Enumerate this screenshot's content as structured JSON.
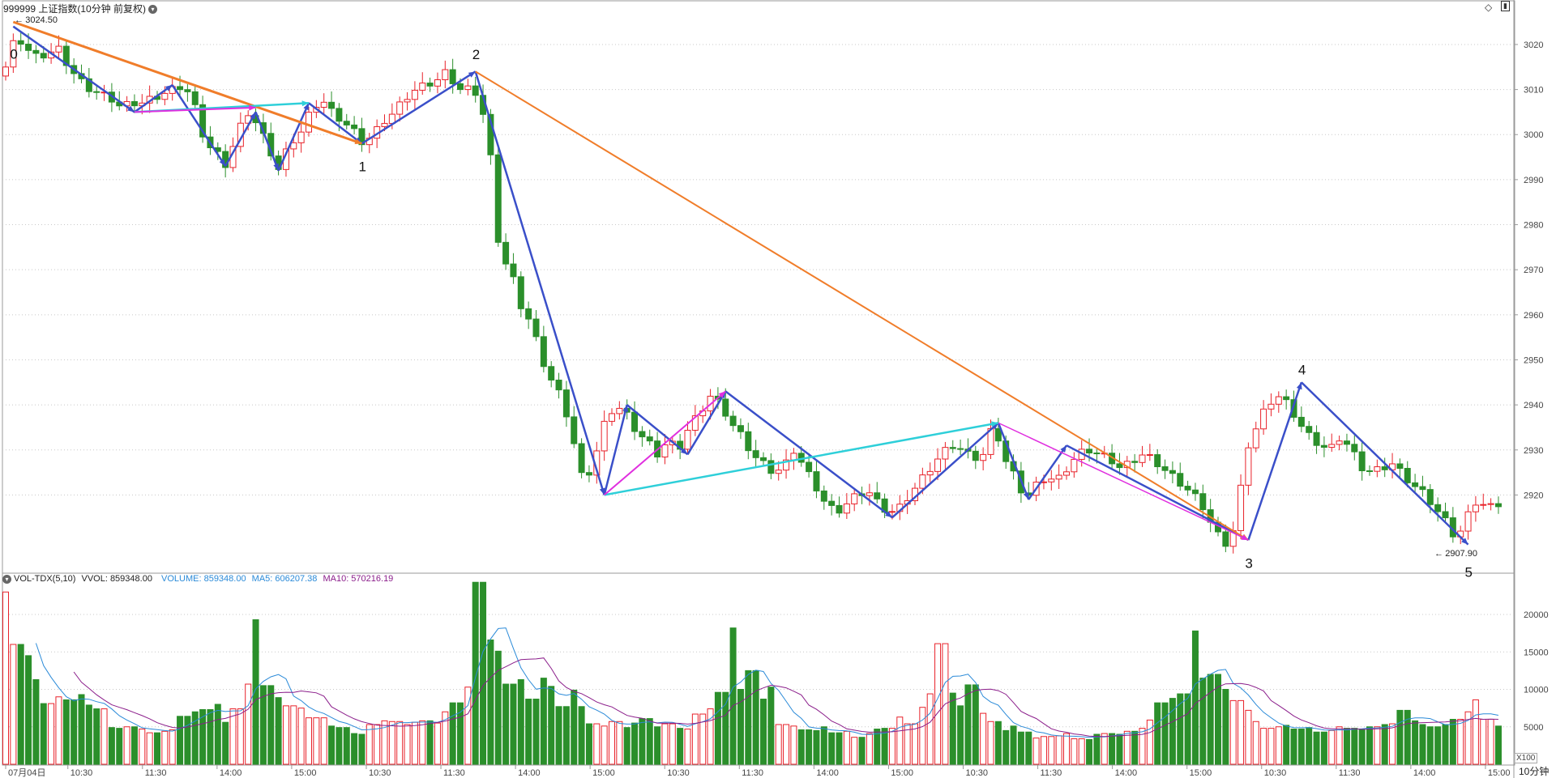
{
  "header": {
    "title": "999999 上证指数(10分钟 前复权)",
    "high_label": "3024.50",
    "low_label": "2907.90"
  },
  "volume_header": {
    "indicator": "VOL-TDX(5,10)",
    "vvol": "VVOL: 859348.00",
    "volume": "VOLUME: 859348.00",
    "ma5": "MA5: 606207.38",
    "ma10": "MA10: 570216.19"
  },
  "footer": {
    "period": "10分钟",
    "multiplier": "X100"
  },
  "colors": {
    "up": "#e8222a",
    "down": "#2b8f2b",
    "wave": "#3a4fc9",
    "orange": "#f07d2a",
    "cyan": "#2ecfd9",
    "magenta": "#e02fdf",
    "ma5": "#2a8ad8",
    "ma10": "#8b1e8b",
    "grid": "#c8c8c8",
    "axis_text": "#444444"
  },
  "chart_data": {
    "type": "candlestick",
    "price_axis": {
      "ylim": [
        2903,
        3027
      ],
      "ticks": [
        3020,
        3010,
        3000,
        2990,
        2980,
        2970,
        2960,
        2950,
        2940,
        2930,
        2920
      ]
    },
    "volume_axis": {
      "ylim": [
        0,
        24000
      ],
      "ticks": [
        20000,
        15000,
        10000,
        5000
      ]
    },
    "x_ticks": [
      {
        "i": 0,
        "label": "07月04日"
      },
      {
        "i": 5,
        "label": "10:30"
      },
      {
        "i": 11,
        "label": "11:30"
      },
      {
        "i": 17,
        "label": "14:00"
      },
      {
        "i": 23,
        "label": "15:00"
      },
      {
        "i": 29,
        "label": "10:30"
      },
      {
        "i": 35,
        "label": "11:30"
      },
      {
        "i": 41,
        "label": "14:00"
      },
      {
        "i": 47,
        "label": "15:00"
      },
      {
        "i": 53,
        "label": "10:30"
      },
      {
        "i": 59,
        "label": "11:30"
      },
      {
        "i": 65,
        "label": "14:00"
      },
      {
        "i": 71,
        "label": "15:00"
      },
      {
        "i": 77,
        "label": "10:30"
      },
      {
        "i": 83,
        "label": "11:30"
      },
      {
        "i": 89,
        "label": "14:00"
      },
      {
        "i": 95,
        "label": "15:00"
      },
      {
        "i": 101,
        "label": "10:30"
      },
      {
        "i": 107,
        "label": "11:30"
      },
      {
        "i": 113,
        "label": "14:00"
      },
      {
        "i": 119,
        "label": "15:00"
      },
      {
        "i": 125,
        "label": "10:30"
      },
      {
        "i": 131,
        "label": "11:30"
      },
      {
        "i": 137,
        "label": "14:00"
      },
      {
        "i": 143,
        "label": "15:00"
      }
    ],
    "closes": [
      3015,
      3022,
      3019,
      3017,
      3018,
      3019,
      3015,
      3012,
      3010,
      3009,
      3008,
      3006,
      3007,
      3007,
      3008,
      3009,
      3010,
      3011,
      3006,
      2998,
      2996,
      2993,
      3000,
      3005,
      3002,
      2997,
      2992,
      2998,
      3000,
      3005,
      3008,
      3005,
      3003,
      3001,
      2998,
      3000,
      3003,
      3005,
      3008,
      3010,
      3011,
      3012,
      3014,
      3010,
      3010,
      3009,
      2998,
      2973,
      2970,
      2962,
      2958,
      2950,
      2945,
      2941,
      2932,
      2922,
      2928,
      2936,
      2940,
      2938,
      2934,
      2932,
      2929,
      2932,
      2930,
      2935,
      2938,
      2942,
      2940,
      2936,
      2933,
      2929,
      2927,
      2925,
      2926,
      2930,
      2926,
      2922,
      2918,
      2916,
      2918,
      2920,
      2921,
      2918,
      2916,
      2917,
      2920,
      2923,
      2926,
      2929,
      2931,
      2930,
      2928,
      2929,
      2936,
      2928,
      2924,
      2919,
      2922,
      2924,
      2923,
      2926,
      2929,
      2930,
      2929,
      2928,
      2926,
      2927,
      2929,
      2928,
      2926,
      2924,
      2922,
      2920,
      2917,
      2912,
      2909,
      2913,
      2930,
      2935,
      2940,
      2942,
      2940,
      2936,
      2933,
      2931,
      2930,
      2933,
      2930,
      2926,
      2925,
      2926,
      2927,
      2924,
      2922,
      2920,
      2917,
      2914,
      2910,
      2915,
      2919,
      2917,
      2918
    ],
    "volumes": [
      23000,
      16000,
      14500,
      11300,
      8100,
      9000,
      8600,
      9300,
      7900,
      7400,
      4900,
      4800,
      5000,
      4700,
      4200,
      4400,
      4600,
      6400,
      7000,
      7300,
      8000,
      5600,
      7400,
      10700,
      19300,
      10500,
      8900,
      7800,
      7500,
      6200,
      6200,
      5100,
      4900,
      4100,
      4000,
      5300,
      5800,
      5700,
      5300,
      5600,
      5800,
      5500,
      7000,
      8200,
      10300,
      24300,
      16600,
      15100,
      10700,
      11300,
      8700,
      11500,
      10400,
      7700,
      9900,
      7700,
      5400,
      5100,
      5700,
      4900,
      5500,
      6100,
      5000,
      5400,
      4800,
      4700,
      6700,
      7400,
      9600,
      18200,
      10000,
      12500,
      8700,
      10300,
      5300,
      5100,
      4600,
      4500,
      5000,
      4200,
      4400,
      3600,
      4100,
      4700,
      4800,
      6300,
      5400,
      7600,
      9400,
      16100,
      9500,
      7800,
      10600,
      6800,
      5700,
      4500,
      5100,
      4300,
      3500,
      3700,
      3800,
      4100,
      3400,
      3300,
      4000,
      4100,
      4000,
      4400,
      4800,
      5900,
      8200,
      8800,
      9400,
      17800,
      11500,
      12000,
      10000,
      8500,
      7200,
      5700,
      4800,
      5000,
      5200,
      4700,
      4900,
      4300,
      4500,
      5000,
      4800,
      4600,
      5000,
      5300,
      5400,
      7200,
      5800,
      5300,
      5000,
      5300,
      6000,
      7000,
      8600,
      6000,
      5100
    ],
    "wave_labels": [
      {
        "text": "0",
        "i": 1,
        "price": 3019,
        "pos": "below"
      },
      {
        "text": "1",
        "i": 47,
        "price": 2994,
        "pos": "below"
      },
      {
        "text": "2",
        "i": 62,
        "price": 3016,
        "pos": "above"
      },
      {
        "text": "3",
        "i": 164,
        "price": 2906,
        "pos": "below"
      },
      {
        "text": "4",
        "i": 171,
        "price": 2946,
        "pos": "above"
      },
      {
        "text": "5",
        "i": 193,
        "price": 2904,
        "pos": "below"
      }
    ],
    "ma_window": [
      5,
      10
    ]
  }
}
